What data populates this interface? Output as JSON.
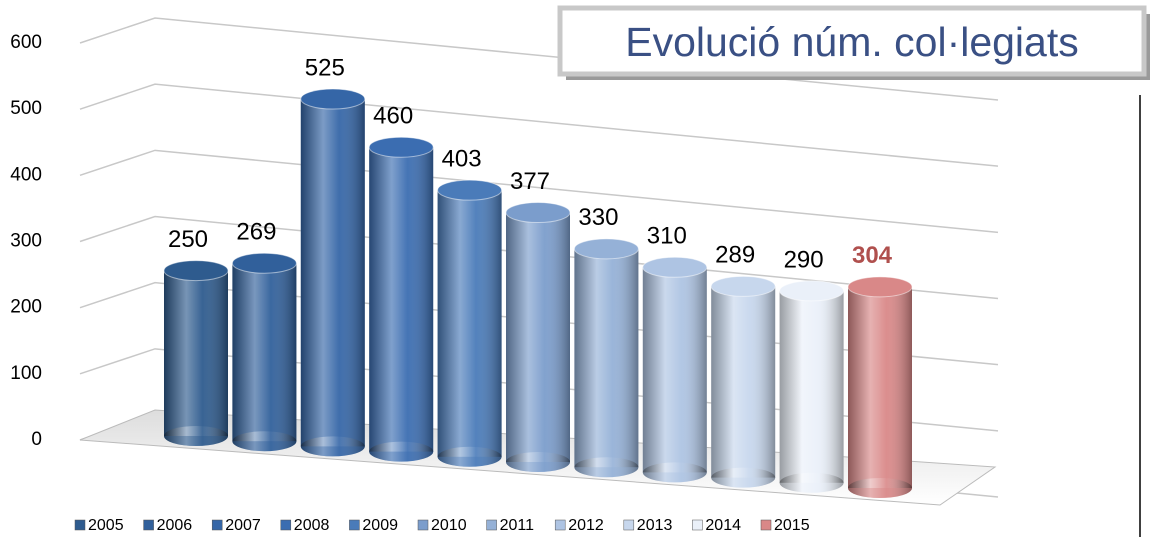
{
  "chart_data": {
    "type": "bar3d",
    "title": "Evolució núm. col·legiats",
    "ylim": [
      0,
      600
    ],
    "yticks": [
      0,
      100,
      200,
      300,
      400,
      500,
      600
    ],
    "grid": true,
    "legend": "bottom",
    "series": [
      {
        "name": "2005",
        "color": "#2e5b8e",
        "values": [
          250
        ]
      },
      {
        "name": "2006",
        "color": "#31609b",
        "values": [
          269
        ]
      },
      {
        "name": "2007",
        "color": "#3566a7",
        "values": [
          525
        ]
      },
      {
        "name": "2008",
        "color": "#3b6db1",
        "values": [
          460
        ]
      },
      {
        "name": "2009",
        "color": "#4a7bb9",
        "values": [
          403
        ]
      },
      {
        "name": "2010",
        "color": "#7b9dcc",
        "values": [
          377
        ]
      },
      {
        "name": "2011",
        "color": "#95b1d7",
        "values": [
          330
        ]
      },
      {
        "name": "2012",
        "color": "#aec4e3",
        "values": [
          310
        ]
      },
      {
        "name": "2013",
        "color": "#c7d7ed",
        "values": [
          289
        ]
      },
      {
        "name": "2014",
        "color": "#eaf0f9",
        "values": [
          290
        ]
      },
      {
        "name": "2015",
        "color": "#d98888",
        "values": [
          304
        ]
      }
    ]
  }
}
